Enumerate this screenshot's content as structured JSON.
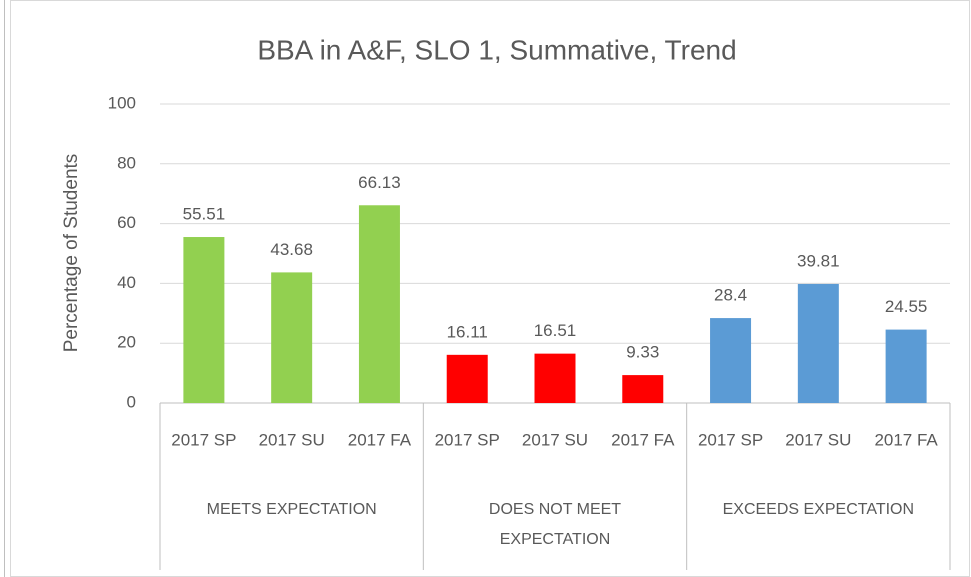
{
  "chart_data": {
    "type": "bar",
    "title": "BBA in A&F, SLO 1, Summative, Trend",
    "y_label": "Percentage of Students",
    "groups": [
      {
        "name": "MEETS EXPECTATION",
        "color": "#92d050",
        "categories": [
          "2017 SP",
          "2017 SU",
          "2017 FA"
        ],
        "values": [
          55.51,
          43.68,
          66.13
        ]
      },
      {
        "name": "DOES NOT MEET EXPECTATION",
        "color": "#ff0000",
        "categories": [
          "2017 SP",
          "2017 SU",
          "2017 FA"
        ],
        "values": [
          16.11,
          16.51,
          9.33
        ]
      },
      {
        "name": "EXCEEDS EXPECTATION",
        "color": "#5b9bd5",
        "categories": [
          "2017 SP",
          "2017 SU",
          "2017 FA"
        ],
        "values": [
          28.4,
          39.81,
          24.55
        ]
      }
    ],
    "ylim": [
      0,
      100
    ],
    "yticks": [
      0,
      20,
      40,
      60,
      80,
      100
    ],
    "grid": true
  }
}
